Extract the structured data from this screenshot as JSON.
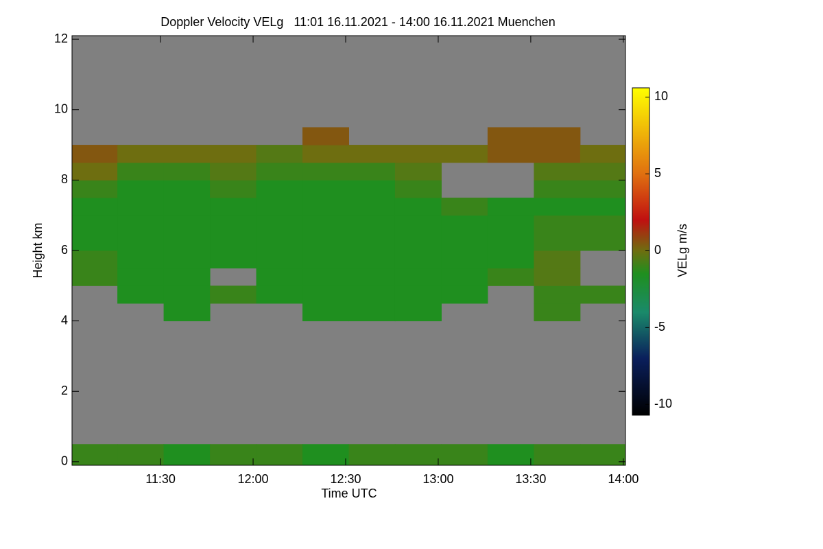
{
  "chart_data": {
    "type": "heatmap",
    "title": "Doppler Velocity VELg   11:01 16.11.2021 - 14:00 16.11.2021 Muenchen",
    "x_label": "Time UTC",
    "y_label": "Height km",
    "colorbar_label": "VELg m/s",
    "xlim": [
      1.3,
      180.7
    ],
    "xticks": [
      {
        "value": 30,
        "label": "11:30"
      },
      {
        "value": 60,
        "label": "12:00"
      },
      {
        "value": 90,
        "label": "12:30"
      },
      {
        "value": 120,
        "label": "13:00"
      },
      {
        "value": 150,
        "label": "13:30"
      },
      {
        "value": 180,
        "label": "14:00"
      }
    ],
    "ylim": [
      -0.1,
      12.1
    ],
    "yticks": [
      0,
      2,
      4,
      6,
      8,
      10,
      12
    ],
    "zlim": [
      -10.7,
      10.6
    ],
    "zticks": [
      -10,
      -5,
      0,
      5,
      10
    ],
    "xbins": [
      1.3,
      16,
      31,
      46,
      61,
      76,
      91,
      106,
      121,
      136,
      151,
      166,
      180.7
    ],
    "ybins": [
      -0.1,
      0.5,
      1,
      1.5,
      2,
      2.5,
      3,
      3.5,
      4,
      4.5,
      5,
      5.5,
      6,
      6.5,
      7,
      7.5,
      8,
      8.5,
      9,
      9.5,
      10,
      10.5,
      11,
      11.5,
      12.1
    ],
    "no_data_color": "#808080",
    "colorscale": [
      [
        -10.7,
        "#000000"
      ],
      [
        -7,
        "#0a1f5c"
      ],
      [
        -4,
        "#1a8a6a"
      ],
      [
        -1.5,
        "#1f8f1f"
      ],
      [
        0,
        "#6e6e10"
      ],
      [
        2,
        "#c01010"
      ],
      [
        5,
        "#e07010"
      ],
      [
        10.6,
        "#ffff00"
      ]
    ],
    "z": [
      [
        -1,
        -1,
        -1.5,
        -1,
        -1,
        -1.5,
        -1,
        -1,
        -1,
        -1.5,
        -1,
        -1
      ],
      [
        null,
        null,
        null,
        null,
        null,
        null,
        null,
        null,
        null,
        null,
        null,
        null
      ],
      [
        null,
        null,
        null,
        null,
        null,
        null,
        null,
        null,
        null,
        null,
        null,
        null
      ],
      [
        null,
        null,
        null,
        null,
        null,
        null,
        null,
        null,
        null,
        null,
        null,
        null
      ],
      [
        null,
        null,
        null,
        null,
        null,
        null,
        null,
        null,
        null,
        null,
        null,
        null
      ],
      [
        null,
        null,
        null,
        null,
        null,
        null,
        null,
        null,
        null,
        null,
        null,
        null
      ],
      [
        null,
        null,
        null,
        null,
        null,
        null,
        null,
        null,
        null,
        null,
        null,
        null
      ],
      [
        null,
        null,
        null,
        null,
        null,
        null,
        null,
        null,
        null,
        null,
        null,
        null
      ],
      [
        null,
        null,
        -1.5,
        null,
        null,
        -1.5,
        -1.5,
        -1.5,
        null,
        null,
        -1,
        null
      ],
      [
        null,
        -1.5,
        -1.5,
        -1,
        -1.5,
        -1.5,
        -1.5,
        -1.5,
        -1.5,
        null,
        -1,
        -1
      ],
      [
        -1,
        -1.5,
        -1.5,
        null,
        -1.5,
        -1.5,
        -1.5,
        -1.5,
        -1.5,
        -1,
        -0.5,
        null
      ],
      [
        -1,
        -1.5,
        -1.5,
        -1.5,
        -1.5,
        -1.5,
        -1.5,
        -1.5,
        -1.5,
        -1.5,
        -0.5,
        null
      ],
      [
        -1.5,
        -1.5,
        -1.5,
        -1.5,
        -1.5,
        -1.5,
        -1.5,
        -1.5,
        -1.5,
        -1.5,
        -1,
        -1
      ],
      [
        -1.5,
        -1.5,
        -1.5,
        -1.5,
        -1.5,
        -1.5,
        -1.5,
        -1.5,
        -1.5,
        -1.5,
        -1,
        -1
      ],
      [
        -1.5,
        -1.5,
        -1.5,
        -1.5,
        -1.5,
        -1.5,
        -1.5,
        -1.5,
        -1,
        -1.5,
        -1.5,
        -1.5
      ],
      [
        -1,
        -1.5,
        -1.5,
        -1,
        -1.5,
        -1.5,
        -1.5,
        -1,
        null,
        null,
        -1,
        -1
      ],
      [
        0,
        -1,
        -1,
        -0.5,
        -1,
        -1,
        -1,
        -0.5,
        null,
        null,
        -0.5,
        -0.5
      ],
      [
        0.5,
        0,
        0,
        0,
        -0.5,
        0,
        0,
        0,
        0,
        0.5,
        0.5,
        0
      ],
      [
        null,
        null,
        null,
        null,
        null,
        0.5,
        null,
        null,
        null,
        0.5,
        0.5,
        null
      ],
      [
        null,
        null,
        null,
        null,
        null,
        null,
        null,
        null,
        null,
        null,
        null,
        null
      ],
      [
        null,
        null,
        null,
        null,
        null,
        null,
        null,
        null,
        null,
        null,
        null,
        null
      ],
      [
        null,
        null,
        null,
        null,
        null,
        null,
        null,
        null,
        null,
        null,
        null,
        null
      ],
      [
        null,
        null,
        null,
        null,
        null,
        null,
        null,
        null,
        null,
        null,
        null,
        null
      ],
      [
        null,
        null,
        null,
        null,
        null,
        null,
        null,
        null,
        null,
        null,
        null,
        null
      ]
    ]
  }
}
